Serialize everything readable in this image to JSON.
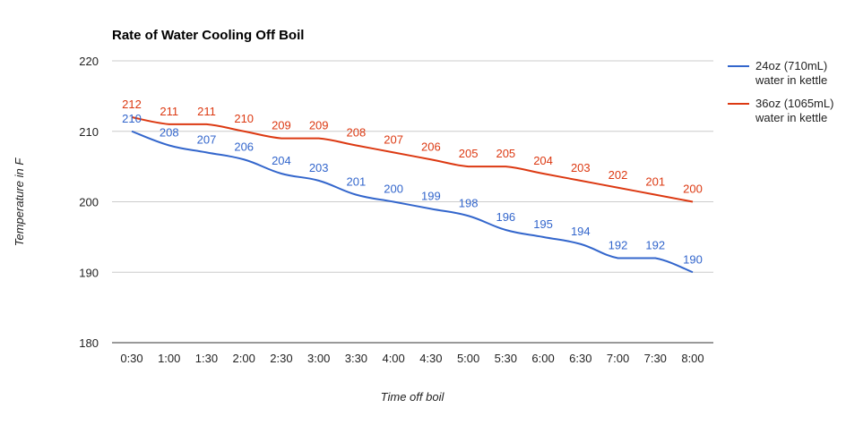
{
  "chart_data": {
    "type": "line",
    "title": "Rate of Water Cooling Off Boil",
    "xlabel": "Time off boil",
    "ylabel": "Temperature in F",
    "ylim": [
      180,
      220
    ],
    "yticks": [
      "220",
      "210",
      "200",
      "190",
      "180"
    ],
    "grid": true,
    "legend_position": "right",
    "categories": [
      "0:30",
      "1:00",
      "1:30",
      "2:00",
      "2:30",
      "3:00",
      "3:30",
      "4:00",
      "4:30",
      "5:00",
      "5:30",
      "6:00",
      "6:30",
      "7:00",
      "7:30",
      "8:00"
    ],
    "series": [
      {
        "name": "24oz (710mL) water in kettle",
        "legend_lines": [
          "24oz (710mL)",
          "water in kettle"
        ],
        "color": "#3366cc",
        "values": [
          210,
          208,
          207,
          206,
          204,
          203,
          201,
          200,
          199,
          198,
          196,
          195,
          194,
          192,
          192,
          190
        ]
      },
      {
        "name": "36oz (1065mL) water in kettle",
        "legend_lines": [
          "36oz (1065mL)",
          "water in kettle"
        ],
        "color": "#dc3912",
        "values": [
          212,
          211,
          211,
          210,
          209,
          209,
          208,
          207,
          206,
          205,
          205,
          204,
          203,
          202,
          201,
          200
        ]
      }
    ]
  }
}
